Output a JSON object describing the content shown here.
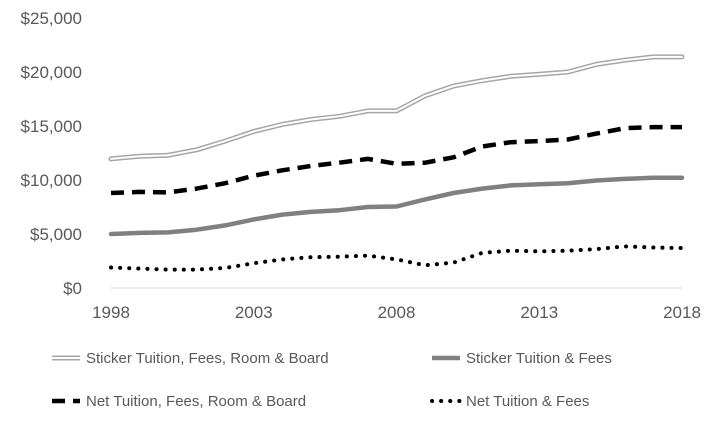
{
  "chart_data": {
    "type": "line",
    "title": "",
    "xlabel": "",
    "ylabel": "",
    "x": [
      1998,
      1999,
      2000,
      2001,
      2002,
      2003,
      2004,
      2005,
      2006,
      2007,
      2008,
      2009,
      2010,
      2011,
      2012,
      2013,
      2014,
      2015,
      2016,
      2017,
      2018
    ],
    "xlim": [
      1998,
      2018
    ],
    "ylim": [
      0,
      25000
    ],
    "x_tick_values": [
      1998,
      2003,
      2008,
      2013,
      2018
    ],
    "x_tick_labels": [
      "1998",
      "2003",
      "2008",
      "2013",
      "2018"
    ],
    "y_tick_values": [
      0,
      5000,
      10000,
      15000,
      20000,
      25000
    ],
    "y_tick_labels": [
      "$0",
      "$5,000",
      "$10,000",
      "$15,000",
      "$20,000",
      "$25,000"
    ],
    "grid": "none",
    "legend_position": "bottom",
    "series": [
      {
        "name": "Sticker Tuition, Fees, Room & Board",
        "style": "double",
        "color": "#a6a6a6",
        "values": [
          11950,
          12200,
          12300,
          12800,
          13600,
          14500,
          15150,
          15600,
          15900,
          16400,
          16400,
          17800,
          18700,
          19200,
          19600,
          19800,
          20000,
          20700,
          21100,
          21400,
          21400
        ]
      },
      {
        "name": "Sticker Tuition & Fees",
        "style": "solid",
        "color": "#808080",
        "values": [
          5000,
          5100,
          5150,
          5400,
          5800,
          6350,
          6800,
          7050,
          7200,
          7500,
          7550,
          8200,
          8800,
          9200,
          9500,
          9600,
          9700,
          9950,
          10100,
          10200,
          10200
        ]
      },
      {
        "name": "Net Tuition, Fees, Room & Board",
        "style": "dashed",
        "color": "#000000",
        "values": [
          8800,
          8900,
          8850,
          9200,
          9700,
          10400,
          10900,
          11300,
          11600,
          11950,
          11500,
          11600,
          12100,
          13100,
          13500,
          13600,
          13750,
          14300,
          14800,
          14900,
          14900
        ]
      },
      {
        "name": "Net Tuition & Fees",
        "style": "dotted",
        "color": "#000000",
        "values": [
          1900,
          1800,
          1700,
          1700,
          1850,
          2300,
          2650,
          2850,
          2900,
          3000,
          2650,
          2100,
          2350,
          3250,
          3450,
          3400,
          3450,
          3600,
          3850,
          3750,
          3700
        ]
      }
    ]
  }
}
